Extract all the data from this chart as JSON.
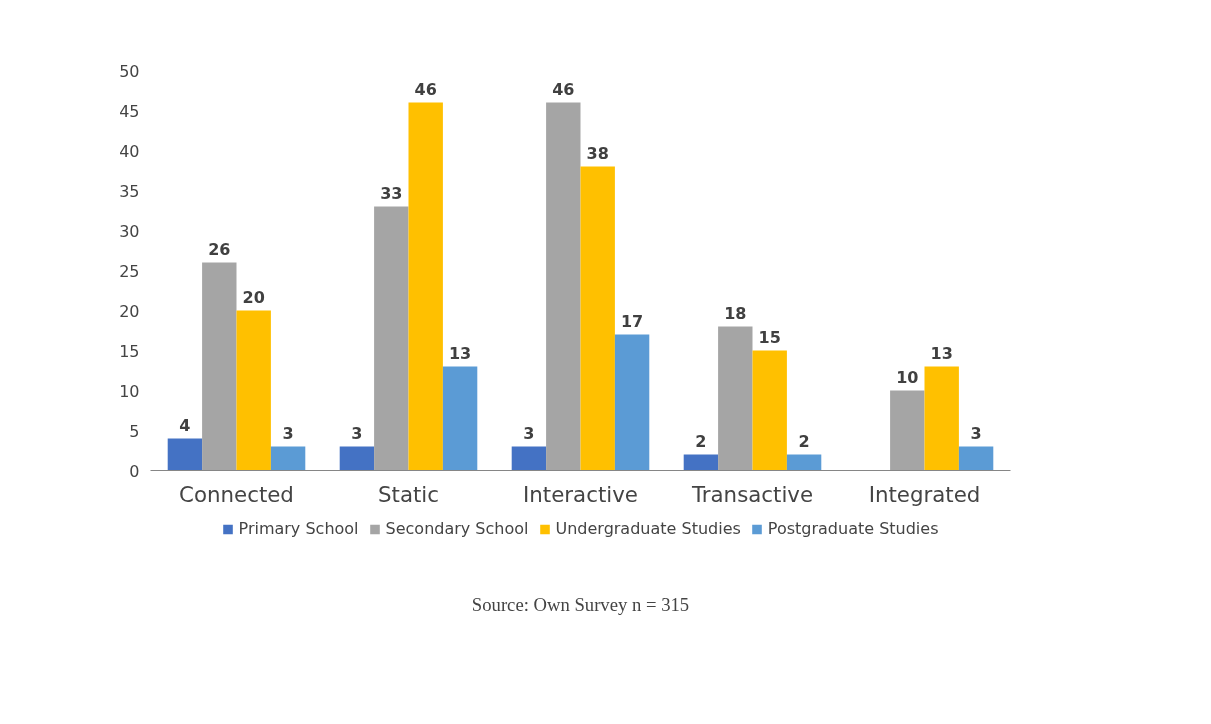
{
  "chart_data": {
    "type": "bar",
    "categories": [
      "Connected",
      "Static",
      "Interactive",
      "Transactive",
      "Integrated"
    ],
    "series": [
      {
        "name": "Primary School",
        "color": "#4472c4",
        "values": [
          4,
          3,
          3,
          2,
          null
        ]
      },
      {
        "name": "Secondary School",
        "color": "#a5a5a5",
        "values": [
          26,
          33,
          46,
          18,
          10
        ]
      },
      {
        "name": "Undergraduate Studies",
        "color": "#ffc000",
        "values": [
          20,
          46,
          38,
          15,
          13
        ]
      },
      {
        "name": "Postgraduate Studies",
        "color": "#5b9bd5",
        "values": [
          3,
          13,
          17,
          2,
          3
        ]
      }
    ],
    "ylim": [
      0,
      50
    ],
    "yticks": [
      0,
      5,
      10,
      15,
      20,
      25,
      30,
      35,
      40,
      45,
      50
    ],
    "grid": false,
    "legend": "bottom",
    "data_labels": true,
    "annotations": [
      "Source: Own Survey n = 315"
    ]
  }
}
